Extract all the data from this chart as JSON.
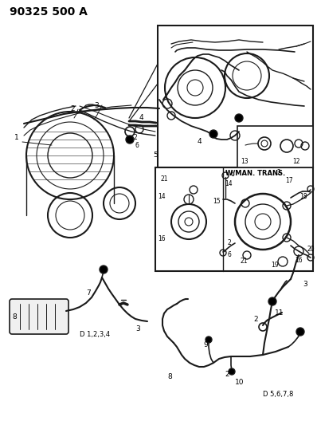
{
  "title": "90325 500 A",
  "bg_color": "#ffffff",
  "fig_width": 3.98,
  "fig_height": 5.33,
  "dpi": 100,
  "label_d1234": "D 1,2,3,4",
  "label_d5678": "D 5,6,7,8",
  "label_wman": "W/MAN. TRANS.",
  "line_color": "#1a1a1a",
  "box_color": "#111111",
  "title_fontsize": 10,
  "anno_fontsize": 6.5,
  "anno_fontsize_small": 5.5
}
